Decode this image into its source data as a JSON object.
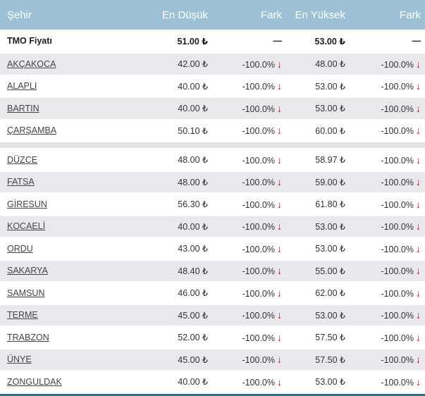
{
  "header": {
    "columns": [
      "Şehir",
      "En Düşük",
      "Fark",
      "En Yüksek",
      "Fark"
    ]
  },
  "tmo": {
    "label": "TMO Fiyatı",
    "low": "51.00 ₺",
    "fark1": "—",
    "high": "53.00 ₺",
    "fark2": "—"
  },
  "arrow_icon": "↓",
  "groups": [
    {
      "rows": [
        {
          "city": "AKÇAKOCA",
          "low": "42.00 ₺",
          "fark1": "-100.0%",
          "high": "48.00 ₺",
          "fark2": "-100.0%"
        },
        {
          "city": "ALAPLI",
          "low": "40.00 ₺",
          "fark1": "-100.0%",
          "high": "53.00 ₺",
          "fark2": "-100.0%"
        },
        {
          "city": "BARTIN",
          "low": "40.00 ₺",
          "fark1": "-100.0%",
          "high": "53.00 ₺",
          "fark2": "-100.0%"
        },
        {
          "city": "ÇARŞAMBA",
          "low": "50.10 ₺",
          "fark1": "-100.0%",
          "high": "60.00 ₺",
          "fark2": "-100.0%"
        }
      ]
    },
    {
      "rows": [
        {
          "city": "DÜZCE",
          "low": "48.00 ₺",
          "fark1": "-100.0%",
          "high": "58.97 ₺",
          "fark2": "-100.0%"
        },
        {
          "city": "FATSA",
          "low": "48.00 ₺",
          "fark1": "-100.0%",
          "high": "59.00 ₺",
          "fark2": "-100.0%"
        },
        {
          "city": "GİRESUN",
          "low": "56.30 ₺",
          "fark1": "-100.0%",
          "high": "61.80 ₺",
          "fark2": "-100.0%"
        },
        {
          "city": "KOCAELİ",
          "low": "40.00 ₺",
          "fark1": "-100.0%",
          "high": "53.00 ₺",
          "fark2": "-100.0%"
        },
        {
          "city": "ORDU",
          "low": "43.00 ₺",
          "fark1": "-100.0%",
          "high": "53.00 ₺",
          "fark2": "-100.0%"
        },
        {
          "city": "SAKARYA",
          "low": "48.40 ₺",
          "fark1": "-100.0%",
          "high": "55.00 ₺",
          "fark2": "-100.0%"
        },
        {
          "city": "SAMSUN",
          "low": "46.00 ₺",
          "fark1": "-100.0%",
          "high": "62.00 ₺",
          "fark2": "-100.0%"
        },
        {
          "city": "TERME",
          "low": "45.00 ₺",
          "fark1": "-100.0%",
          "high": "53.00 ₺",
          "fark2": "-100.0%"
        },
        {
          "city": "TRABZON",
          "low": "52.00 ₺",
          "fark1": "-100.0%",
          "high": "57.50 ₺",
          "fark2": "-100.0%"
        },
        {
          "city": "ÜNYE",
          "low": "45.00 ₺",
          "fark1": "-100.0%",
          "high": "57.50 ₺",
          "fark2": "-100.0%"
        },
        {
          "city": "ZONGULDAK",
          "low": "40.00 ₺",
          "fark1": "-100.0%",
          "high": "53.00 ₺",
          "fark2": "-100.0%"
        }
      ]
    }
  ],
  "colors": {
    "header_bg": "#9cc0d4",
    "alt_row_bg": "#e9e9ed",
    "negative": "#bf1212",
    "separator": "#e4e4e8",
    "footer_bar": "#327085"
  }
}
